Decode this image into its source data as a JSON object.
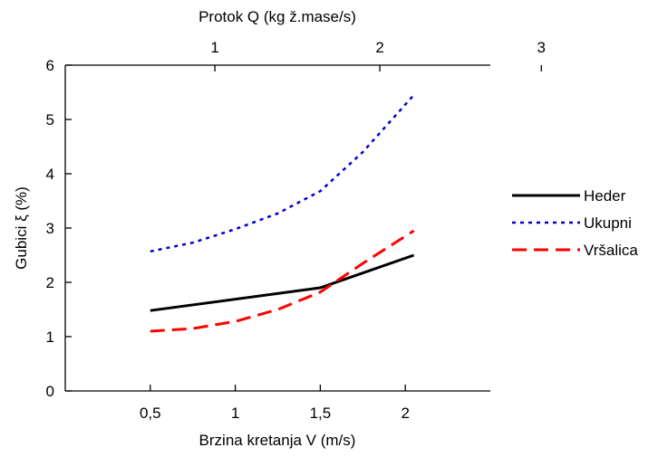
{
  "chart_data": {
    "type": "line",
    "title": "",
    "xlabel": "Brzina kretanja V (m/s)",
    "ylabel": "Gubici ξ (%)",
    "x2label": "Protok Q (kg ž.mase/s)",
    "xlim": [
      0,
      2.5
    ],
    "ylim": [
      0,
      6
    ],
    "xticks": [
      0.5,
      1,
      1.5,
      2
    ],
    "xtick_labels": [
      "0,5",
      "1",
      "1,5",
      "2"
    ],
    "yticks": [
      0,
      1,
      2,
      3,
      4,
      5,
      6
    ],
    "ytick_labels": [
      "0",
      "1",
      "2",
      "3",
      "4",
      "5",
      "6"
    ],
    "x2ticks": [
      1,
      2,
      3
    ],
    "x2tick_labels": [
      "1",
      "2",
      "3"
    ],
    "x2_positions_in_x_units": [
      0.88,
      1.85,
      2.8
    ],
    "grid": false,
    "legend_position": "right",
    "series": [
      {
        "name": "Heder",
        "color": "#000000",
        "style": "solid",
        "x": [
          0.5,
          1.5,
          2.05
        ],
        "y": [
          1.48,
          1.9,
          2.5
        ]
      },
      {
        "name": "Ukupni",
        "color": "#0000cc",
        "style": "dotted",
        "x": [
          0.5,
          0.75,
          1.0,
          1.25,
          1.5,
          1.75,
          2.05
        ],
        "y": [
          2.57,
          2.73,
          2.98,
          3.27,
          3.68,
          4.4,
          5.45
        ]
      },
      {
        "name": "Vršalica",
        "color": "#ff0000",
        "style": "dashed",
        "x": [
          0.5,
          0.75,
          1.0,
          1.25,
          1.5,
          1.75,
          2.05
        ],
        "y": [
          1.1,
          1.15,
          1.28,
          1.5,
          1.82,
          2.35,
          2.95
        ]
      }
    ]
  }
}
